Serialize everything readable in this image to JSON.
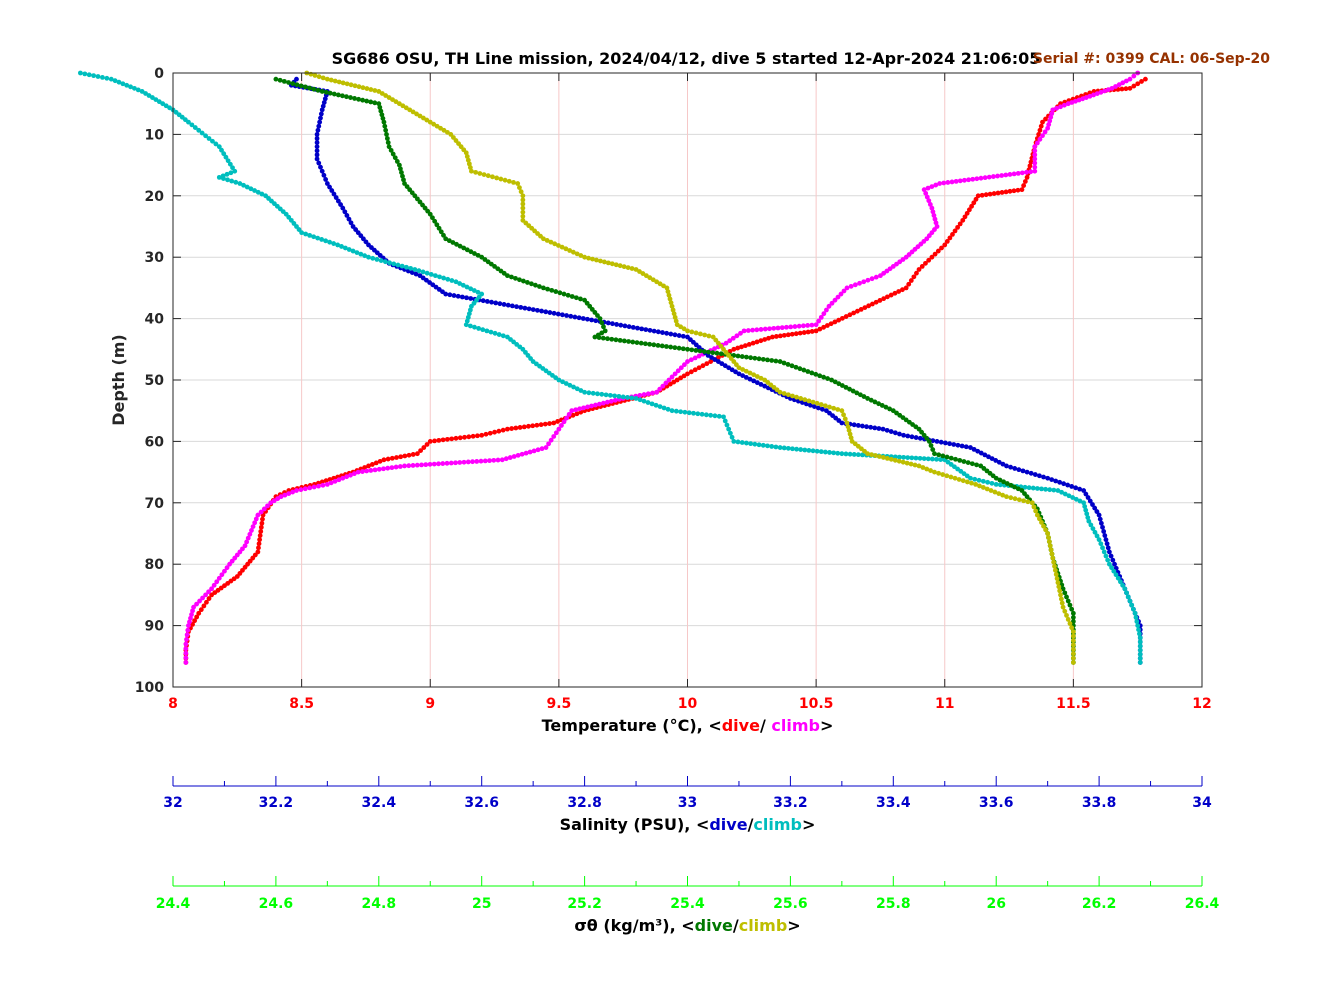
{
  "chart_data": {
    "type": "scatter",
    "title": "SG686 OSU, TH Line mission, 2024/04/12, dive 5 started 12-Apr-2024 21:06:05",
    "annotation": "Serial #: 0399  CAL: 06-Sep-20",
    "ylabel": "Depth (m)",
    "ylim": [
      0,
      100
    ],
    "y_inverted": true,
    "y_ticks": [
      "0",
      "10",
      "20",
      "30",
      "40",
      "50",
      "60",
      "70",
      "80",
      "90",
      "100"
    ],
    "grid": true,
    "axes": [
      {
        "id": "temperature",
        "label_prefix": "Temperature (°C), <",
        "label_dive": "dive",
        "label_sep": "/ ",
        "label_climb": "climb",
        "label_suffix": ">",
        "range": [
          8,
          12
        ],
        "ticks": [
          "8",
          "8.5",
          "9",
          "9.5",
          "10",
          "10.5",
          "11",
          "11.5",
          "12"
        ],
        "color": "#ff0000"
      },
      {
        "id": "salinity",
        "label_prefix": "Salinity (PSU), <",
        "label_dive": "dive",
        "label_sep": "/",
        "label_climb": "climb",
        "label_suffix": ">",
        "range": [
          32,
          34
        ],
        "ticks": [
          "32",
          "32.2",
          "32.4",
          "32.6",
          "32.8",
          "33",
          "33.2",
          "33.4",
          "33.6",
          "33.8",
          "34"
        ],
        "color": "#0000c8"
      },
      {
        "id": "density",
        "label_prefix": "σθ (kg/m³), <",
        "label_dive": "dive",
        "label_sep": "/",
        "label_climb": "climb",
        "label_suffix": ">",
        "range": [
          24.4,
          26.4
        ],
        "ticks": [
          "24.4",
          "24.6",
          "24.8",
          "25",
          "25.2",
          "25.4",
          "25.6",
          "25.8",
          "26",
          "26.2",
          "26.4"
        ],
        "color": "#00ff00"
      }
    ],
    "series": [
      {
        "name": "dive",
        "axis": "temperature",
        "color": "#ff0000",
        "points": [
          [
            11.78,
            1
          ],
          [
            11.72,
            2.5
          ],
          [
            11.58,
            3
          ],
          [
            11.45,
            5
          ],
          [
            11.38,
            8
          ],
          [
            11.35,
            12
          ],
          [
            11.32,
            17
          ],
          [
            11.3,
            19
          ],
          [
            11.13,
            20
          ],
          [
            11.07,
            24
          ],
          [
            11.0,
            28
          ],
          [
            10.9,
            32
          ],
          [
            10.85,
            35
          ],
          [
            10.5,
            42
          ],
          [
            10.33,
            43
          ],
          [
            10.18,
            45
          ],
          [
            10.0,
            49
          ],
          [
            9.88,
            52
          ],
          [
            9.6,
            55
          ],
          [
            9.48,
            57
          ],
          [
            9.3,
            58
          ],
          [
            9.2,
            59
          ],
          [
            9.0,
            60
          ],
          [
            8.95,
            62
          ],
          [
            8.82,
            63
          ],
          [
            8.7,
            65
          ],
          [
            8.55,
            67
          ],
          [
            8.45,
            68
          ],
          [
            8.4,
            69
          ],
          [
            8.35,
            72
          ],
          [
            8.33,
            78
          ],
          [
            8.25,
            82
          ],
          [
            8.15,
            85
          ],
          [
            8.1,
            88
          ],
          [
            8.06,
            91
          ],
          [
            8.05,
            94
          ],
          [
            8.05,
            96
          ]
        ]
      },
      {
        "name": "climb",
        "axis": "temperature",
        "color": "#ff00ff",
        "points": [
          [
            8.05,
            96
          ],
          [
            8.05,
            93
          ],
          [
            8.06,
            90
          ],
          [
            8.08,
            87
          ],
          [
            8.15,
            84
          ],
          [
            8.22,
            80
          ],
          [
            8.28,
            77
          ],
          [
            8.33,
            72
          ],
          [
            8.38,
            70
          ],
          [
            8.42,
            69
          ],
          [
            8.48,
            68
          ],
          [
            8.6,
            67
          ],
          [
            8.72,
            65
          ],
          [
            8.9,
            64
          ],
          [
            9.28,
            63
          ],
          [
            9.45,
            61
          ],
          [
            9.5,
            58
          ],
          [
            9.55,
            55
          ],
          [
            9.75,
            53
          ],
          [
            9.88,
            52
          ],
          [
            10.0,
            47
          ],
          [
            10.15,
            44
          ],
          [
            10.22,
            42
          ],
          [
            10.5,
            41
          ],
          [
            10.55,
            38
          ],
          [
            10.62,
            35
          ],
          [
            10.75,
            33
          ],
          [
            10.85,
            30
          ],
          [
            10.93,
            27
          ],
          [
            10.97,
            25
          ],
          [
            10.95,
            22
          ],
          [
            10.92,
            19
          ],
          [
            10.98,
            18
          ],
          [
            11.35,
            16
          ],
          [
            11.35,
            12
          ],
          [
            11.4,
            9
          ],
          [
            11.42,
            6
          ],
          [
            11.48,
            5
          ],
          [
            11.55,
            4
          ],
          [
            11.65,
            2.5
          ],
          [
            11.72,
            1
          ],
          [
            11.75,
            0
          ]
        ]
      },
      {
        "name": "dive",
        "axis": "salinity",
        "color": "#0000c8",
        "points": [
          [
            32.24,
            1
          ],
          [
            32.23,
            2
          ],
          [
            32.3,
            3
          ],
          [
            32.29,
            6
          ],
          [
            32.28,
            10
          ],
          [
            32.28,
            14
          ],
          [
            32.3,
            18
          ],
          [
            32.33,
            22
          ],
          [
            32.35,
            25
          ],
          [
            32.38,
            28
          ],
          [
            32.42,
            31
          ],
          [
            32.48,
            33
          ],
          [
            32.53,
            36
          ],
          [
            33.0,
            43
          ],
          [
            33.04,
            46
          ],
          [
            33.1,
            49
          ],
          [
            33.2,
            53
          ],
          [
            33.27,
            55
          ],
          [
            33.3,
            57
          ],
          [
            33.38,
            58
          ],
          [
            33.42,
            59
          ],
          [
            33.55,
            61
          ],
          [
            33.62,
            64
          ],
          [
            33.7,
            66
          ],
          [
            33.77,
            68
          ],
          [
            33.8,
            72
          ],
          [
            33.82,
            78
          ],
          [
            33.84,
            82
          ],
          [
            33.86,
            86
          ],
          [
            33.88,
            90
          ],
          [
            33.88,
            94
          ],
          [
            33.88,
            96
          ]
        ]
      },
      {
        "name": "climb",
        "axis": "salinity",
        "color": "#00bebe",
        "points": [
          [
            33.88,
            96
          ],
          [
            33.88,
            92
          ],
          [
            33.87,
            88
          ],
          [
            33.85,
            84
          ],
          [
            33.82,
            80
          ],
          [
            33.8,
            76
          ],
          [
            33.78,
            73
          ],
          [
            33.77,
            70
          ],
          [
            33.72,
            68
          ],
          [
            33.6,
            67
          ],
          [
            33.55,
            66
          ],
          [
            33.5,
            63
          ],
          [
            33.3,
            62
          ],
          [
            33.18,
            61
          ],
          [
            33.09,
            60
          ],
          [
            33.08,
            58
          ],
          [
            33.07,
            56
          ],
          [
            32.97,
            55
          ],
          [
            32.9,
            53
          ],
          [
            32.8,
            52
          ],
          [
            32.75,
            50
          ],
          [
            32.7,
            47
          ],
          [
            32.68,
            45
          ],
          [
            32.65,
            43
          ],
          [
            32.57,
            41
          ],
          [
            32.58,
            38
          ],
          [
            32.6,
            36
          ],
          [
            32.55,
            34
          ],
          [
            32.47,
            32
          ],
          [
            32.38,
            30
          ],
          [
            32.32,
            28
          ],
          [
            32.25,
            26
          ],
          [
            32.22,
            23
          ],
          [
            32.18,
            20
          ],
          [
            32.13,
            18
          ],
          [
            32.09,
            17
          ],
          [
            32.12,
            16
          ],
          [
            32.09,
            12
          ],
          [
            32.03,
            8
          ],
          [
            32.0,
            6
          ],
          [
            31.94,
            3
          ],
          [
            31.88,
            1
          ],
          [
            31.82,
            0
          ]
        ]
      },
      {
        "name": "dive",
        "axis": "density",
        "color": "#007800",
        "points": [
          [
            24.6,
            1
          ],
          [
            24.69,
            3
          ],
          [
            24.8,
            5
          ],
          [
            24.81,
            8
          ],
          [
            24.82,
            12
          ],
          [
            24.84,
            15
          ],
          [
            24.85,
            18
          ],
          [
            24.87,
            20
          ],
          [
            24.9,
            23
          ],
          [
            24.93,
            27
          ],
          [
            25.0,
            30
          ],
          [
            25.05,
            33
          ],
          [
            25.12,
            35
          ],
          [
            25.2,
            37
          ],
          [
            25.23,
            40
          ],
          [
            25.24,
            42
          ],
          [
            25.22,
            43
          ],
          [
            25.58,
            47
          ],
          [
            25.68,
            50
          ],
          [
            25.75,
            53
          ],
          [
            25.8,
            55
          ],
          [
            25.85,
            58
          ],
          [
            25.87,
            60
          ],
          [
            25.88,
            62
          ],
          [
            25.97,
            64
          ],
          [
            26.0,
            66
          ],
          [
            26.05,
            68
          ],
          [
            26.08,
            71
          ],
          [
            26.1,
            75
          ],
          [
            26.11,
            79
          ],
          [
            26.13,
            84
          ],
          [
            26.15,
            88
          ],
          [
            26.15,
            92
          ],
          [
            26.15,
            96
          ]
        ]
      },
      {
        "name": "climb",
        "axis": "density",
        "color": "#bebe00",
        "points": [
          [
            26.15,
            96
          ],
          [
            26.15,
            91
          ],
          [
            26.13,
            87
          ],
          [
            26.12,
            83
          ],
          [
            26.11,
            79
          ],
          [
            26.1,
            75
          ],
          [
            26.08,
            72
          ],
          [
            26.07,
            70
          ],
          [
            26.02,
            69
          ],
          [
            25.96,
            67
          ],
          [
            25.88,
            65
          ],
          [
            25.85,
            64
          ],
          [
            25.75,
            62
          ],
          [
            25.72,
            60
          ],
          [
            25.71,
            57
          ],
          [
            25.7,
            55
          ],
          [
            25.62,
            53
          ],
          [
            25.58,
            52
          ],
          [
            25.55,
            50
          ],
          [
            25.5,
            48
          ],
          [
            25.47,
            45
          ],
          [
            25.45,
            43
          ],
          [
            25.4,
            42
          ],
          [
            25.38,
            41
          ],
          [
            25.37,
            38
          ],
          [
            25.36,
            35
          ],
          [
            25.3,
            32
          ],
          [
            25.2,
            30
          ],
          [
            25.12,
            27
          ],
          [
            25.08,
            24
          ],
          [
            25.08,
            20
          ],
          [
            25.07,
            18
          ],
          [
            24.98,
            16
          ],
          [
            24.97,
            13
          ],
          [
            24.94,
            10
          ],
          [
            24.88,
            7
          ],
          [
            24.84,
            5
          ],
          [
            24.8,
            3
          ],
          [
            24.7,
            1
          ],
          [
            24.66,
            0
          ]
        ]
      }
    ]
  }
}
